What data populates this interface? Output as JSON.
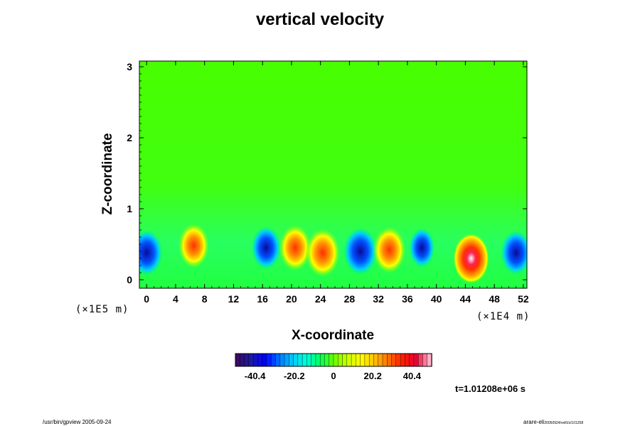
{
  "chart_data": {
    "type": "heatmap",
    "title": "vertical velocity",
    "xlabel": "X-coordinate",
    "ylabel": "Z-coordinate",
    "x_scale_label": "(×1E4 m)",
    "y_scale_label": "(×1E5 m)",
    "xlim": [
      -1,
      52.5
    ],
    "ylim": [
      -0.12,
      3.08
    ],
    "x_ticks": [
      "0",
      "4",
      "8",
      "12",
      "16",
      "20",
      "24",
      "28",
      "32",
      "36",
      "40",
      "44",
      "48",
      "52"
    ],
    "y_ticks": [
      "0",
      "1",
      "2",
      "3"
    ],
    "colorbar": {
      "ticks": [
        "-40.4",
        "-20.2",
        "0",
        "20.2",
        "40.4"
      ],
      "min": -50.5,
      "max": 50.5,
      "colors": [
        "#3a0a64",
        "#1a1aa8",
        "#0000ff",
        "#0070ff",
        "#00c8ff",
        "#00ffd8",
        "#00ff60",
        "#66ff00",
        "#ccff00",
        "#ffff00",
        "#ffc000",
        "#ff7000",
        "#ff2000",
        "#e80030",
        "#ffb0c8"
      ]
    },
    "cells": [
      {
        "x": 0,
        "z": 0.38,
        "value": -40
      },
      {
        "x": 6.5,
        "z": 0.48,
        "value": 34
      },
      {
        "x": 16.5,
        "z": 0.45,
        "value": -32
      },
      {
        "x": 20.5,
        "z": 0.45,
        "value": 38
      },
      {
        "x": 24.3,
        "z": 0.38,
        "value": 46
      },
      {
        "x": 29.5,
        "z": 0.4,
        "value": -46
      },
      {
        "x": 33.5,
        "z": 0.42,
        "value": 40
      },
      {
        "x": 38.0,
        "z": 0.45,
        "value": -20
      },
      {
        "x": 44.8,
        "z": 0.3,
        "value": 50
      },
      {
        "x": 51.0,
        "z": 0.38,
        "value": -36
      }
    ],
    "time": "t=1.01208e+06 s"
  },
  "footer": {
    "left": "/usr/bin/gpview 2005-09-24",
    "right": "arare-eli",
    "right_small": "20050924/vel0/z/101208"
  }
}
